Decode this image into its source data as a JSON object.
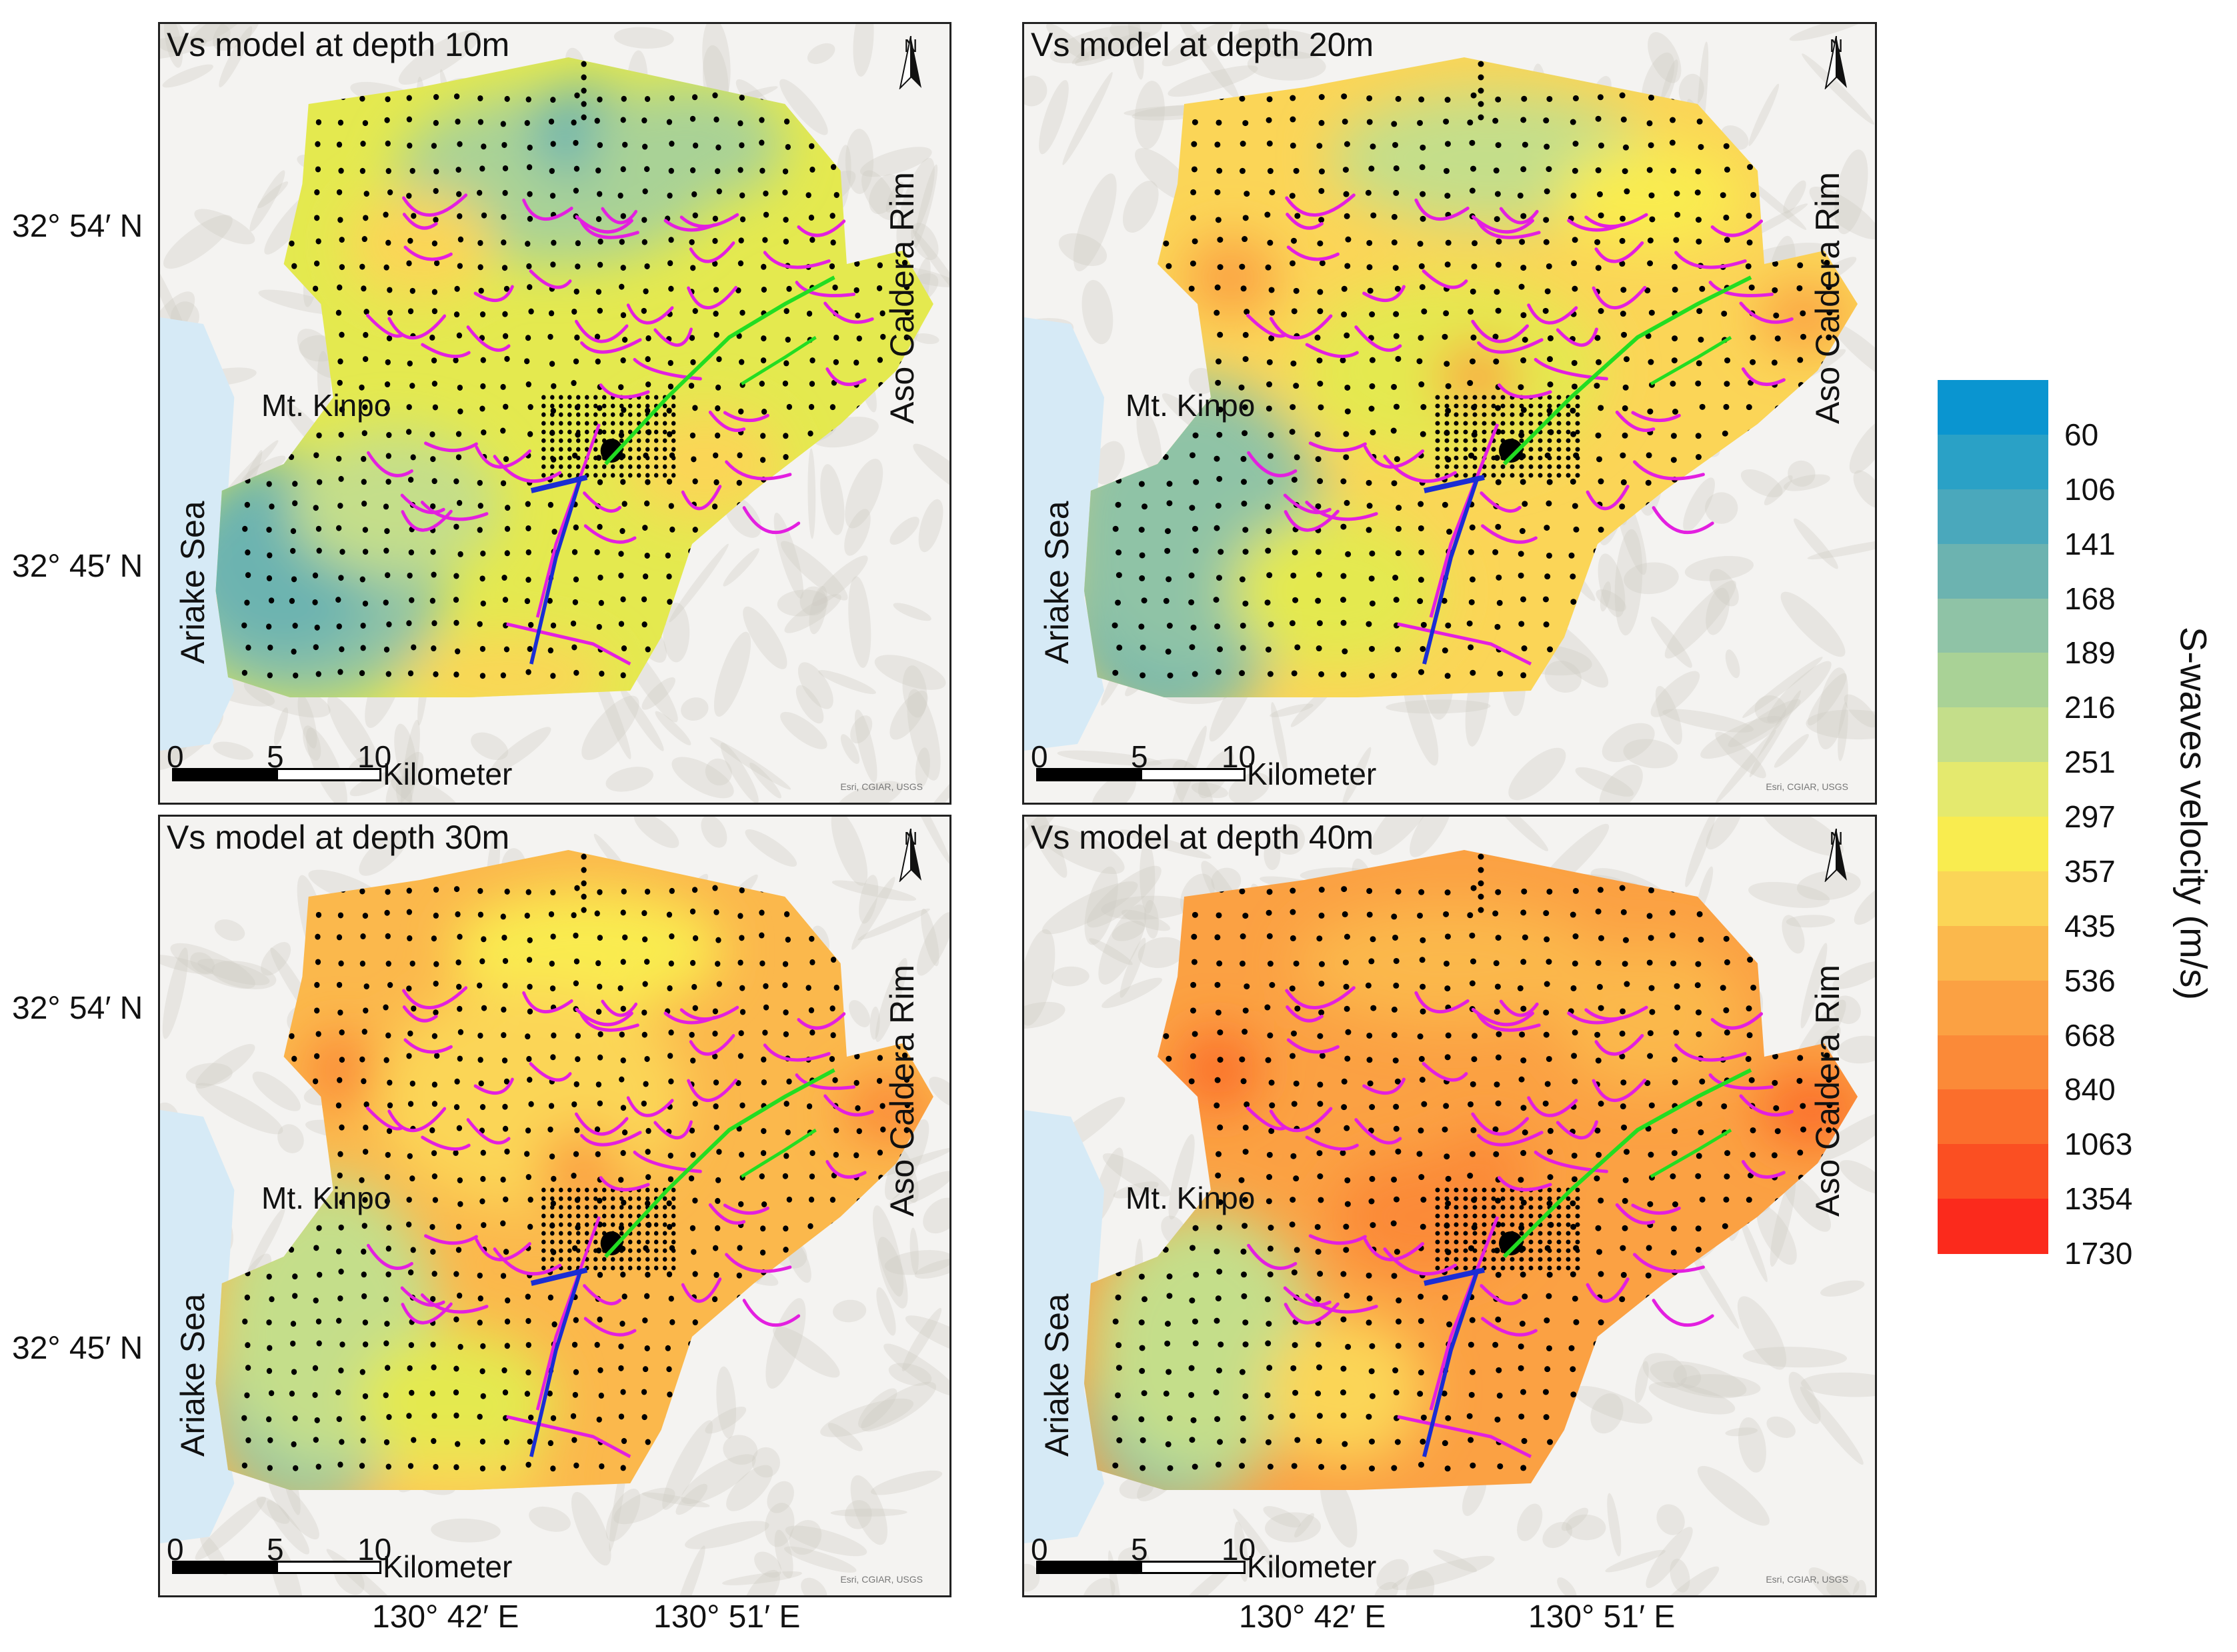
{
  "panels": [
    {
      "title": "Vs model at depth 10m",
      "model": "Vs model at depth 10m",
      "depth_m": 10
    },
    {
      "title": "Vs model at depth 20m",
      "model": "Vs model at depth 20m",
      "depth_m": 20
    },
    {
      "title": "Vs model at depth 30m",
      "model": "Vs model at depth 30m",
      "depth_m": 30
    },
    {
      "title": "Vs model at depth 40m",
      "model": "Vs model at depth 40m",
      "depth_m": 40
    }
  ],
  "map_labels": {
    "mount": "Mt. Kinpo",
    "sea": "Ariake Sea",
    "rim": "Aso Caldera Rim",
    "north": "N",
    "credit": "Esri, CGIAR, USGS"
  },
  "scale_bar": {
    "t0": "0",
    "t5": "5",
    "t10": "10",
    "unit": "Kilometer"
  },
  "axes": {
    "lat1": "32° 54′ N",
    "lat2": "32° 45′ N",
    "lon1": "130° 42′ E",
    "lon2": "130° 51′ E"
  },
  "legend": {
    "title": "S-waves velocity (m/s)",
    "values": [
      "60",
      "106",
      "141",
      "168",
      "189",
      "216",
      "251",
      "297",
      "357",
      "435",
      "536",
      "668",
      "840",
      "1063",
      "1354",
      "1730"
    ],
    "colors": [
      "#0a95d0",
      "#2aa1c6",
      "#4aa8bc",
      "#6cb3b0",
      "#8fc3a6",
      "#a9d296",
      "#c4de8a",
      "#e4e96e",
      "#f9ec4f",
      "#fbd557",
      "#fbb84c",
      "#fba143",
      "#fb8a38",
      "#fb6e2c",
      "#fb4f22",
      "#fb2a1c"
    ]
  },
  "colors": {
    "fault_magenta": "#e31fe0",
    "fault_green": "#22dd22",
    "fault_blue": "#1a2dd4",
    "sea": "#d6eaf6"
  }
}
